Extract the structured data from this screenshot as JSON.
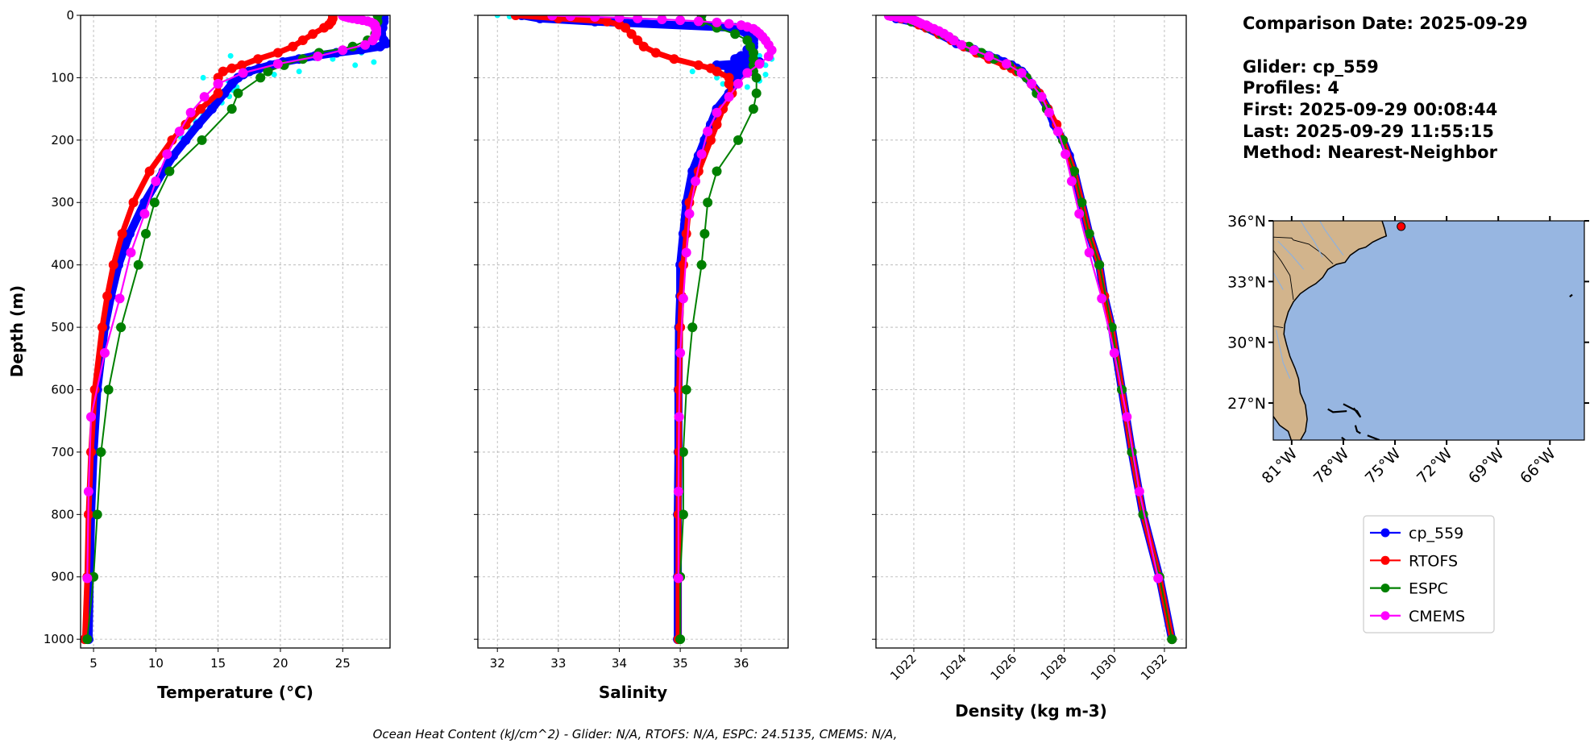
{
  "info": {
    "lines": [
      "Comparison Date: 2025-09-29",
      "Glider: cp_559",
      "Profiles: 4",
      "First: 2025-09-29 00:08:44",
      "Last: 2025-09-29 11:55:15",
      "Method: Nearest-Neighbor"
    ]
  },
  "caption": "Ocean Heat Content (kJ/cm^2) - Glider: N/A,  RTOFS: N/A,  ESPC: 24.5135,  CMEMS: N/A,",
  "legend": [
    {
      "label": "cp_559",
      "color": "#0000ff"
    },
    {
      "label": "RTOFS",
      "color": "#ff0000"
    },
    {
      "label": "ESPC",
      "color": "#008000"
    },
    {
      "label": "CMEMS",
      "color": "#ff00ff"
    }
  ],
  "chart_data": [
    {
      "type": "line",
      "id": "temperature",
      "xlabel": "Temperature (°C)",
      "ylabel": "Depth (m)",
      "xlim": [
        3.96,
        28.8
      ],
      "ylim": [
        1014,
        0
      ],
      "xticks": [
        "5",
        "10",
        "15",
        "20",
        "25"
      ],
      "yticks": [
        "0",
        "100",
        "200",
        "300",
        "400",
        "500",
        "600",
        "700",
        "800",
        "900",
        "1000"
      ],
      "grid": true,
      "series": [
        {
          "name": "cp_559",
          "color": "#0000ff",
          "depth": [
            0,
            5,
            10,
            20,
            30,
            40,
            45,
            50,
            55,
            60,
            65,
            70,
            75,
            80,
            85,
            90,
            95,
            100,
            110,
            125,
            150,
            175,
            200,
            225,
            250,
            300,
            350,
            400,
            450,
            500,
            600,
            700,
            800,
            900,
            1000
          ],
          "values": [
            28.3,
            28.3,
            28.3,
            28.2,
            28.1,
            28.3,
            28.5,
            28.0,
            26.5,
            24.5,
            22.8,
            21.5,
            20.2,
            19.2,
            18.3,
            17.5,
            17.0,
            16.6,
            16.1,
            15.5,
            14.5,
            13.4,
            12.4,
            11.4,
            10.6,
            9.1,
            7.9,
            7.0,
            6.4,
            5.9,
            5.3,
            5.0,
            4.8,
            4.7,
            4.6
          ]
        },
        {
          "name": "RTOFS",
          "color": "#ff0000",
          "depth": [
            0,
            5,
            10,
            15,
            20,
            30,
            40,
            50,
            60,
            70,
            80,
            85,
            90,
            100,
            110,
            125,
            150,
            175,
            200,
            250,
            300,
            350,
            400,
            450,
            500,
            600,
            700,
            800,
            900,
            1000
          ],
          "values": [
            24.2,
            24.2,
            24.1,
            23.9,
            23.5,
            22.6,
            21.8,
            21.0,
            19.8,
            18.2,
            16.9,
            16.1,
            15.4,
            15.0,
            15.0,
            15.0,
            13.6,
            12.4,
            11.3,
            9.5,
            8.2,
            7.3,
            6.6,
            6.1,
            5.7,
            5.1,
            4.8,
            4.6,
            4.5,
            4.3
          ]
        },
        {
          "name": "ESPC",
          "color": "#008000",
          "depth": [
            0,
            10,
            20,
            30,
            40,
            50,
            60,
            70,
            80,
            90,
            100,
            125,
            150,
            200,
            250,
            300,
            350,
            400,
            500,
            600,
            700,
            800,
            900,
            1000
          ],
          "values": [
            27.8,
            27.8,
            27.7,
            27.6,
            27.0,
            25.8,
            23.1,
            21.8,
            20.3,
            19.0,
            18.4,
            16.6,
            16.1,
            13.7,
            11.1,
            9.9,
            9.2,
            8.6,
            7.2,
            6.2,
            5.6,
            5.3,
            5.0,
            4.5
          ]
        },
        {
          "name": "CMEMS",
          "color": "#ff00ff",
          "depth": [
            0.5,
            1.5,
            2.6,
            3.8,
            5,
            6.4,
            7.9,
            9.6,
            11.4,
            13.5,
            15.8,
            18.5,
            21.6,
            25.2,
            29.4,
            34.4,
            40.3,
            47.4,
            55.8,
            65.8,
            77.9,
            92.3,
            109.7,
            130.7,
            155.9,
            186.1,
            222.5,
            266,
            318.1,
            380.2,
            453.9,
            541.1,
            643.6,
            763.3,
            902.3
          ],
          "values": [
            25.0,
            25.1,
            25.3,
            25.5,
            25.8,
            26.2,
            26.6,
            27.0,
            27.3,
            27.5,
            27.6,
            27.6,
            27.7,
            27.7,
            27.7,
            27.6,
            27.4,
            26.8,
            25.0,
            23.0,
            19.8,
            17.0,
            15.0,
            13.9,
            12.8,
            11.9,
            10.9,
            10.0,
            9.1,
            8.0,
            7.1,
            5.9,
            4.8,
            4.6,
            4.5
          ]
        }
      ],
      "glider_raw": {
        "color": "#00ffff",
        "depth": [
          65,
          75,
          80,
          90,
          95,
          100,
          105,
          115,
          120,
          130,
          140,
          150,
          160,
          170,
          180,
          195,
          60,
          70
        ],
        "values": [
          16.0,
          27.5,
          26.0,
          21.5,
          19.5,
          13.8,
          15.8,
          16.5,
          16.2,
          15.9,
          15.3,
          14.5,
          13.8,
          13.2,
          12.7,
          12.0,
          26.5,
          24.2
        ]
      }
    },
    {
      "type": "line",
      "id": "salinity",
      "xlabel": "Salinity",
      "xlim": [
        31.68,
        36.77
      ],
      "ylim": [
        1014,
        0
      ],
      "xticks": [
        "32",
        "33",
        "34",
        "35",
        "36"
      ],
      "grid": true,
      "series": [
        {
          "name": "cp_559",
          "color": "#0000ff",
          "depth": [
            0,
            5,
            10,
            20,
            30,
            40,
            45,
            50,
            55,
            60,
            65,
            70,
            75,
            80,
            85,
            90,
            95,
            100,
            110,
            125,
            150,
            175,
            200,
            225,
            250,
            300,
            350,
            400,
            450,
            500,
            600,
            700,
            800,
            900,
            1000
          ],
          "values": [
            32.4,
            32.7,
            33.6,
            35.9,
            36.1,
            36.2,
            36.2,
            36.2,
            36.1,
            36.2,
            36.0,
            35.9,
            36.3,
            35.6,
            36.1,
            35.8,
            36.0,
            35.9,
            35.9,
            35.8,
            35.6,
            35.5,
            35.4,
            35.3,
            35.2,
            35.1,
            35.05,
            35.0,
            35.0,
            34.98,
            34.97,
            34.97,
            34.96,
            34.96,
            34.96
          ]
        },
        {
          "name": "RTOFS",
          "color": "#ff0000",
          "depth": [
            0,
            5,
            10,
            15,
            20,
            30,
            40,
            50,
            60,
            70,
            80,
            85,
            90,
            100,
            110,
            125,
            150,
            175,
            200,
            250,
            300,
            350,
            400,
            450,
            500,
            600,
            700,
            800,
            900,
            1000
          ],
          "values": [
            32.3,
            33.0,
            33.8,
            34.0,
            34.1,
            34.2,
            34.3,
            34.4,
            34.6,
            34.9,
            35.3,
            35.5,
            35.6,
            35.8,
            35.8,
            35.85,
            35.7,
            35.6,
            35.5,
            35.3,
            35.15,
            35.1,
            35.05,
            35.02,
            35.0,
            34.98,
            34.98,
            34.97,
            34.97,
            34.97
          ]
        },
        {
          "name": "ESPC",
          "color": "#008000",
          "depth": [
            0,
            10,
            20,
            30,
            40,
            50,
            60,
            70,
            80,
            90,
            100,
            125,
            150,
            200,
            250,
            300,
            350,
            400,
            500,
            600,
            700,
            800,
            900,
            1000
          ],
          "values": [
            35.35,
            35.35,
            35.6,
            35.9,
            36.1,
            36.15,
            36.2,
            36.2,
            36.2,
            36.2,
            36.25,
            36.25,
            36.2,
            35.95,
            35.6,
            35.45,
            35.4,
            35.35,
            35.2,
            35.1,
            35.05,
            35.05,
            35.0,
            35.0
          ]
        },
        {
          "name": "CMEMS",
          "color": "#ff00ff",
          "depth": [
            0.5,
            1.5,
            2.6,
            3.8,
            5,
            6.4,
            7.9,
            9.6,
            11.4,
            13.5,
            15.8,
            18.5,
            21.6,
            25.2,
            29.4,
            34.4,
            40.3,
            47.4,
            55.8,
            65.8,
            77.9,
            92.3,
            109.7,
            130.7,
            155.9,
            186.1,
            222.5,
            266,
            318.1,
            380.2,
            453.9,
            541.1,
            643.6,
            763.3,
            902.3
          ],
          "values": [
            32.9,
            33.2,
            33.6,
            34.0,
            34.3,
            34.7,
            35.0,
            35.3,
            35.6,
            35.8,
            36.0,
            36.1,
            36.2,
            36.25,
            36.3,
            36.35,
            36.4,
            36.45,
            36.5,
            36.45,
            36.3,
            36.1,
            35.95,
            35.8,
            35.6,
            35.45,
            35.35,
            35.25,
            35.15,
            35.1,
            35.05,
            35.0,
            34.98,
            34.97,
            34.97
          ]
        }
      ],
      "glider_raw": {
        "color": "#00ffff",
        "depth": [
          0,
          2,
          60,
          65,
          70,
          80,
          90,
          95,
          100,
          105,
          110,
          115
        ],
        "values": [
          32.0,
          32.2,
          36.5,
          36.3,
          36.5,
          36.4,
          35.2,
          36.4,
          35.6,
          36.3,
          35.7,
          36.1
        ]
      }
    },
    {
      "type": "line",
      "id": "density",
      "xlabel": "Density (kg m-3)",
      "xlim": [
        1020.49,
        1032.87
      ],
      "ylim": [
        1014,
        0
      ],
      "xticks": [
        "1022",
        "1024",
        "1026",
        "1028",
        "1030",
        "1032"
      ],
      "grid": true,
      "series": [
        {
          "name": "cp_559",
          "color": "#0000ff",
          "depth": [
            0,
            5,
            10,
            20,
            30,
            40,
            45,
            50,
            55,
            60,
            65,
            70,
            75,
            80,
            85,
            90,
            95,
            100,
            110,
            125,
            150,
            175,
            200,
            225,
            250,
            300,
            350,
            400,
            450,
            500,
            600,
            700,
            800,
            900,
            1000
          ],
          "values": [
            1021.1,
            1021.3,
            1021.9,
            1022.5,
            1023.0,
            1023.5,
            1023.7,
            1024.0,
            1024.4,
            1024.6,
            1025.0,
            1025.3,
            1025.6,
            1025.9,
            1026.1,
            1026.3,
            1026.4,
            1026.5,
            1026.7,
            1027.0,
            1027.35,
            1027.6,
            1027.95,
            1028.2,
            1028.4,
            1028.7,
            1029.0,
            1029.4,
            1029.6,
            1029.9,
            1030.3,
            1030.7,
            1031.15,
            1031.8,
            1032.3
          ]
        },
        {
          "name": "RTOFS",
          "color": "#ff0000",
          "depth": [
            0,
            5,
            10,
            15,
            20,
            30,
            40,
            50,
            60,
            70,
            80,
            85,
            90,
            100,
            110,
            125,
            150,
            175,
            200,
            250,
            300,
            350,
            400,
            450,
            500,
            600,
            700,
            800,
            900,
            1000
          ],
          "values": [
            1021.2,
            1021.5,
            1021.9,
            1022.2,
            1022.5,
            1023.0,
            1023.5,
            1024.0,
            1024.5,
            1025.0,
            1025.6,
            1025.9,
            1026.1,
            1026.5,
            1026.7,
            1027.0,
            1027.35,
            1027.7,
            1027.95,
            1028.4,
            1028.7,
            1029.0,
            1029.4,
            1029.6,
            1029.9,
            1030.3,
            1030.7,
            1031.15,
            1031.8,
            1032.3
          ]
        },
        {
          "name": "ESPC",
          "color": "#008000",
          "depth": [
            0,
            10,
            20,
            30,
            40,
            50,
            60,
            70,
            80,
            90,
            100,
            125,
            150,
            200,
            250,
            300,
            350,
            400,
            500,
            600,
            700,
            800,
            900,
            1000
          ],
          "values": [
            1021.3,
            1021.9,
            1022.6,
            1023.1,
            1023.6,
            1024.2,
            1024.7,
            1025.2,
            1025.8,
            1026.2,
            1026.5,
            1026.9,
            1027.3,
            1027.95,
            1028.4,
            1028.7,
            1029.0,
            1029.4,
            1029.9,
            1030.3,
            1030.7,
            1031.15,
            1031.8,
            1032.3
          ]
        },
        {
          "name": "CMEMS",
          "color": "#ff00ff",
          "depth": [
            0.5,
            1.5,
            2.6,
            3.8,
            5,
            6.4,
            7.9,
            9.6,
            11.4,
            13.5,
            15.8,
            18.5,
            21.6,
            25.2,
            29.4,
            34.4,
            40.3,
            47.4,
            55.8,
            65.8,
            77.9,
            92.3,
            109.7,
            130.7,
            155.9,
            186.1,
            222.5,
            266,
            318.1,
            380.2,
            453.9,
            541.1,
            643.6,
            763.3,
            902.3
          ],
          "values": [
            1021.0,
            1021.1,
            1021.3,
            1021.5,
            1021.7,
            1021.9,
            1022.0,
            1022.1,
            1022.2,
            1022.3,
            1022.5,
            1022.6,
            1022.8,
            1023.0,
            1023.2,
            1023.4,
            1023.6,
            1023.9,
            1024.4,
            1025.0,
            1025.7,
            1026.3,
            1026.7,
            1027.1,
            1027.4,
            1027.75,
            1028.05,
            1028.3,
            1028.6,
            1029.0,
            1029.5,
            1030.0,
            1030.5,
            1031.0,
            1031.75
          ]
        }
      ]
    },
    {
      "type": "map",
      "id": "location-map",
      "lon_range": [
        -82.07,
        -64.0
      ],
      "lat_range": [
        25.17,
        36.0
      ],
      "lat_ticks": [
        {
          "value": 36,
          "label": "36°N"
        },
        {
          "value": 33,
          "label": "33°N"
        },
        {
          "value": 30,
          "label": "30°N"
        },
        {
          "value": 27,
          "label": "27°N"
        }
      ],
      "lon_ticks": [
        {
          "value": -81,
          "label": "81°W"
        },
        {
          "value": -78,
          "label": "78°W"
        },
        {
          "value": -75,
          "label": "75°W"
        },
        {
          "value": -72,
          "label": "72°W"
        },
        {
          "value": -69,
          "label": "69°W"
        },
        {
          "value": -66,
          "label": "66°W"
        }
      ],
      "glider_position": {
        "lon": -74.64,
        "lat": 35.72,
        "color": "#ff0000"
      },
      "ocean_color": "#97b6e1",
      "land_color": "#d2b48c"
    }
  ]
}
